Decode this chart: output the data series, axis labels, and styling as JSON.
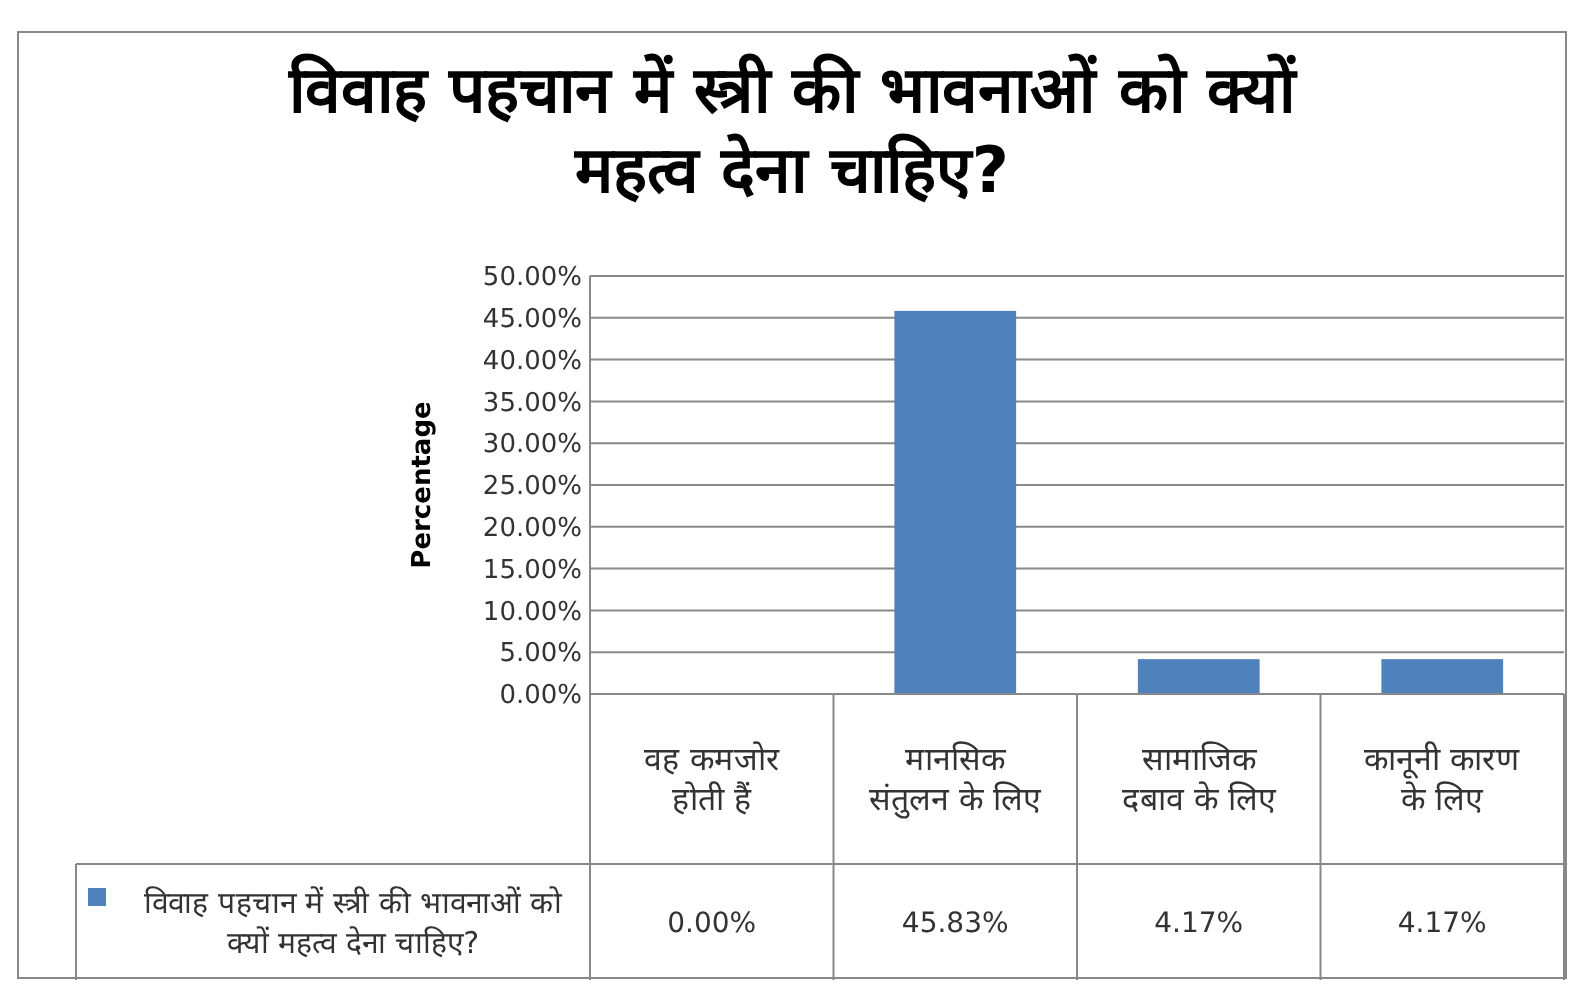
{
  "chart_data": {
    "type": "bar",
    "title": "विवाह पहचान में स्त्री की भावनाओं को क्यों महत्व देना चाहिए?",
    "ylabel": "Percentage",
    "categories": [
      "वह कमजोर होती हैं",
      "मानसिक संतुलन के लिए",
      "सामाजिक दबाव के लिए",
      "कानूनी कारण के लिए"
    ],
    "series": [
      {
        "name": "विवाह पहचान में स्त्री की भावनाओं को क्यों महत्व देना चाहिए?",
        "color": "#4f81bd",
        "values": [
          0,
          45.83,
          4.17,
          4.17
        ],
        "value_labels": [
          "0.00%",
          "45.83%",
          "4.17%",
          "4.17%"
        ]
      }
    ],
    "ylim": [
      0,
      50
    ],
    "yticks": [
      {
        "value": 0,
        "label": "0.00%"
      },
      {
        "value": 5,
        "label": "5.00%"
      },
      {
        "value": 10,
        "label": "10.00%"
      },
      {
        "value": 15,
        "label": "15.00%"
      },
      {
        "value": 20,
        "label": "20.00%"
      },
      {
        "value": 25,
        "label": "25.00%"
      },
      {
        "value": 30,
        "label": "30.00%"
      },
      {
        "value": 35,
        "label": "35.00%"
      },
      {
        "value": 40,
        "label": "40.00%"
      },
      {
        "value": 45,
        "label": "45.00%"
      },
      {
        "value": 50,
        "label": "50.00%"
      }
    ],
    "grid": "y",
    "legend": "bottom"
  }
}
